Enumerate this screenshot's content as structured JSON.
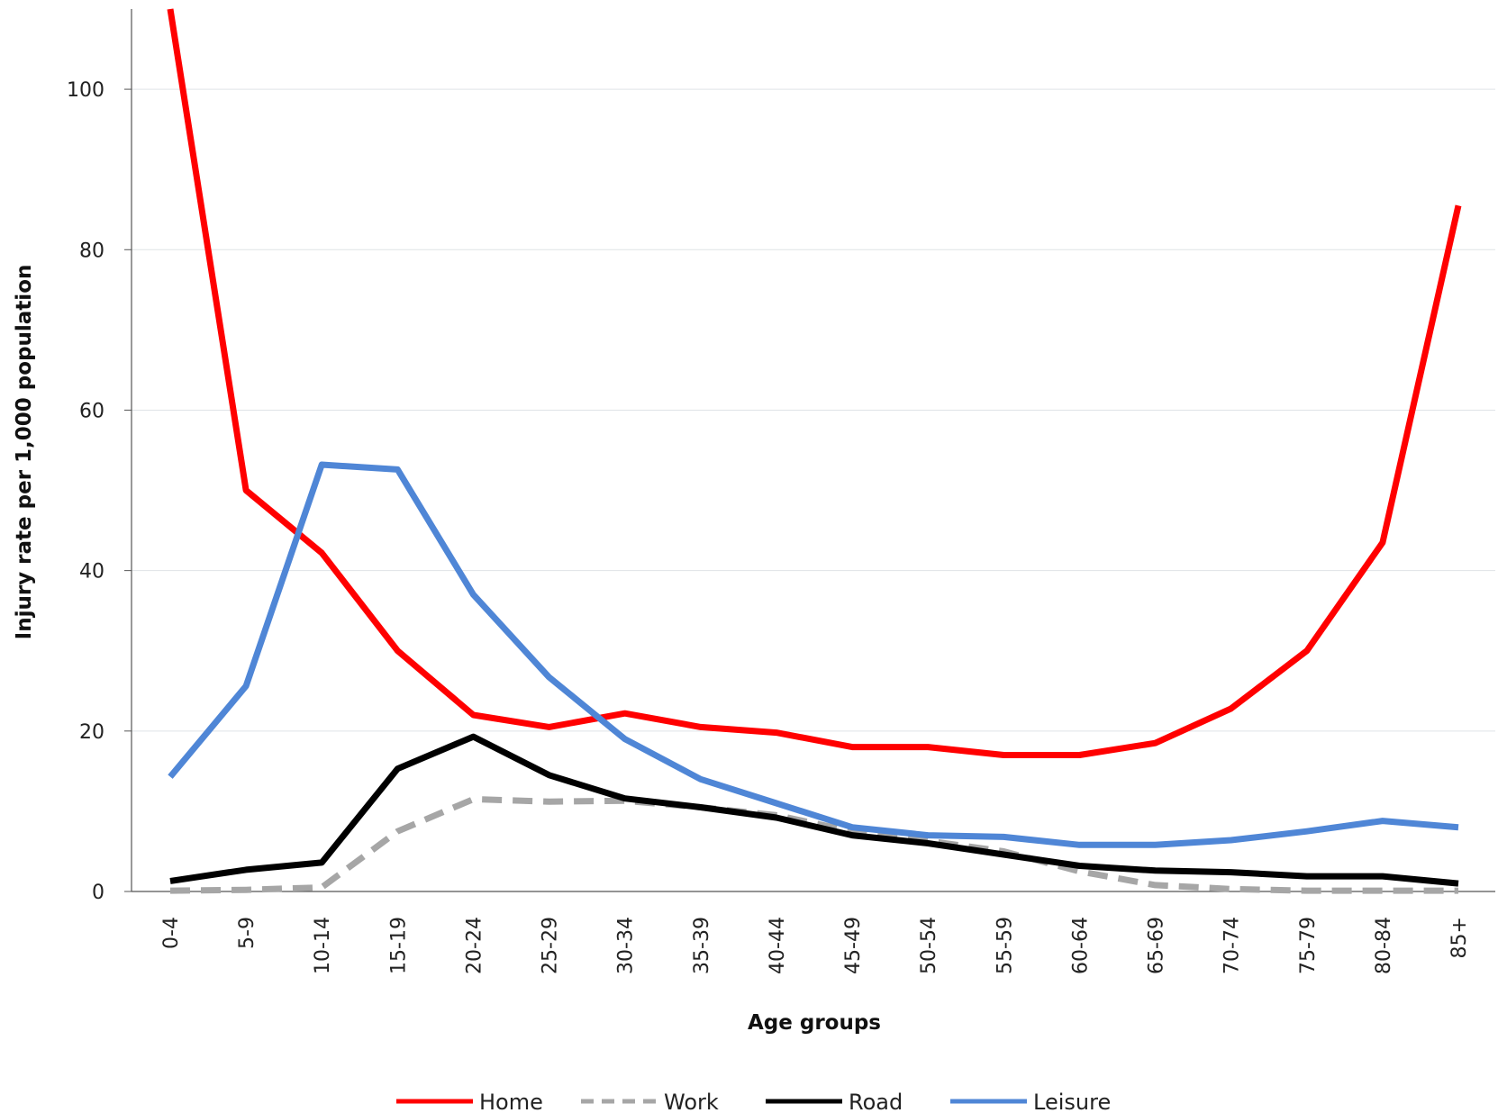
{
  "chart_data": {
    "type": "line",
    "title": "",
    "xlabel": "Age groups",
    "ylabel": "Injury rate per 1,000 population",
    "ylim": [
      0,
      110
    ],
    "yticks": [
      0,
      20,
      40,
      60,
      80,
      100
    ],
    "grid": true,
    "legend_position": "bottom",
    "categories": [
      "0-4",
      "5-9",
      "10-14",
      "15-19",
      "20-24",
      "25-29",
      "30-34",
      "35-39",
      "40-44",
      "45-49",
      "50-54",
      "55-59",
      "60-64",
      "65-69",
      "70-74",
      "75-79",
      "80-84",
      "85+"
    ],
    "series": [
      {
        "name": "Home",
        "color": "#ff0000",
        "style": "solid",
        "values": [
          110,
          50,
          42.2,
          30,
          22,
          20.5,
          22.2,
          20.5,
          19.8,
          18,
          18,
          17,
          17,
          18.5,
          22.8,
          30,
          43.5,
          85.5
        ]
      },
      {
        "name": "Work",
        "color": "#a6a6a6",
        "style": "dashed",
        "values": [
          0.1,
          0.2,
          0.5,
          7.5,
          11.5,
          11.2,
          11.3,
          10.5,
          9.5,
          7.5,
          6.3,
          5,
          2.5,
          0.8,
          0.3,
          0.1,
          0.1,
          0.1
        ]
      },
      {
        "name": "Road",
        "color": "#000000",
        "style": "solid",
        "values": [
          1.3,
          2.7,
          3.6,
          15.3,
          19.3,
          14.5,
          11.6,
          10.5,
          9.2,
          7,
          6,
          4.6,
          3.2,
          2.6,
          2.4,
          1.9,
          1.9,
          1
        ]
      },
      {
        "name": "Leisure",
        "color": "#4f86d6",
        "style": "solid",
        "values": [
          14.3,
          25.6,
          53.2,
          52.6,
          37,
          26.7,
          19,
          14,
          11,
          8,
          7,
          6.8,
          5.8,
          5.8,
          6.4,
          7.5,
          8.8,
          8
        ]
      }
    ]
  }
}
